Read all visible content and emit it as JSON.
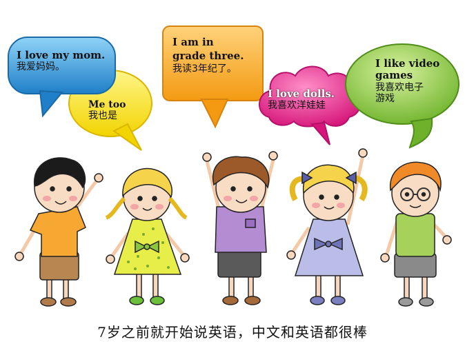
{
  "bubbles": [
    {
      "id": "mom",
      "en": "I love my mom.",
      "cn": "我爱妈妈。",
      "color": "#3ba0dc"
    },
    {
      "id": "metoo",
      "en": "Me too",
      "cn": "我也是",
      "color": "#f4e23a"
    },
    {
      "id": "grade",
      "en": "I  am in grade three.",
      "en_line1": "I  am in",
      "en_line2": "grade three.",
      "cn": "我读3年纪了。",
      "color": "#f6a623"
    },
    {
      "id": "dolls",
      "en": "I love dolls.",
      "cn": "我喜欢洋娃娃",
      "color": "#ea3a8c"
    },
    {
      "id": "games",
      "en_line1": "I like video",
      "en_line2": "games",
      "cn_line1": "我喜欢电子",
      "cn_line2": "游戏",
      "color": "#8cc63f"
    }
  ],
  "caption": "7岁之前就开始说英语，中文和英语都很棒",
  "children": [
    "boy-orange-shirt",
    "girl-yellow-dress",
    "boy-purple-shirt",
    "girl-blue-dress",
    "boy-green-shirt-glasses"
  ]
}
